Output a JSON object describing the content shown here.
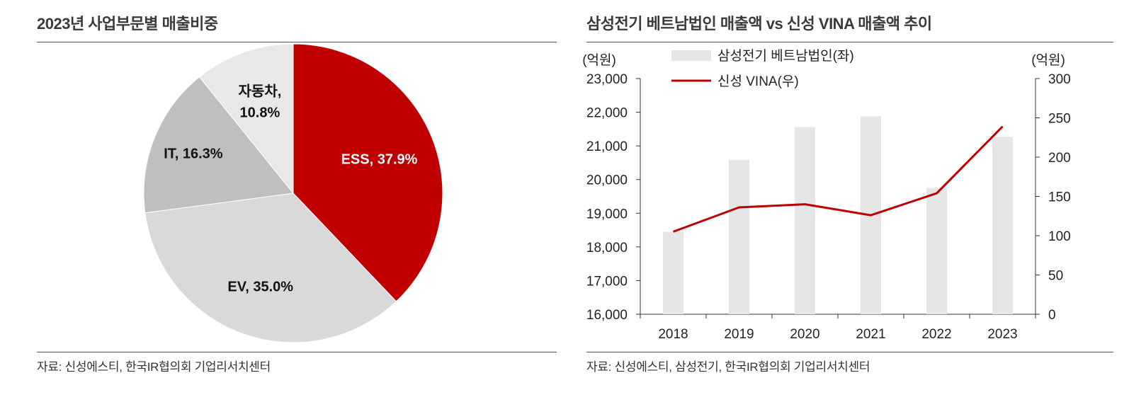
{
  "left": {
    "title": "2023년 사업부문별 매출비중",
    "source": "자료: 신성에스티, 한국IR협의회 기업리서치센터"
  },
  "right": {
    "title": "삼성전기 베트남법인 매출액 vs 신성 VINA 매출액 추이",
    "source": "자료: 신성에스티, 삼성전기, 한국IR협의회 기업리서치센터"
  },
  "chart_data": [
    {
      "type": "pie",
      "title": "2023년 사업부문별 매출비중",
      "start": "12 o'clock, clockwise",
      "slices": [
        {
          "label": "ESS",
          "value": 37.9,
          "text": "ESS, 37.9%",
          "color": "#c00000",
          "label_color": "#ffffff"
        },
        {
          "label": "EV",
          "value": 35.0,
          "text": "EV, 35.0%",
          "color": "#d9d9d9",
          "label_color": "#111111"
        },
        {
          "label": "IT",
          "value": 16.3,
          "text": "IT, 16.3%",
          "color": "#bfbfbf",
          "label_color": "#111111"
        },
        {
          "label": "자동차",
          "value": 10.8,
          "text_lines": [
            "자동차,",
            "10.8%"
          ],
          "color": "#e8e8e8",
          "label_color": "#111111"
        }
      ]
    },
    {
      "type": "bar+line",
      "title": "삼성전기 베트남법인 매출액 vs 신성 VINA 매출액 추이",
      "categories": [
        "2018",
        "2019",
        "2020",
        "2021",
        "2022",
        "2023"
      ],
      "left_unit": "(억원)",
      "right_unit": "(억원)",
      "left_axis": {
        "min": 16000,
        "max": 23000,
        "ticks": [
          16000,
          17000,
          18000,
          19000,
          20000,
          21000,
          22000,
          23000
        ],
        "tick_labels": [
          "16,000",
          "17,000",
          "18,000",
          "19,000",
          "20,000",
          "21,000",
          "22,000",
          "23,000"
        ]
      },
      "right_axis": {
        "min": 0,
        "max": 300,
        "ticks": [
          0,
          50,
          100,
          150,
          200,
          250,
          300
        ],
        "tick_labels": [
          "0",
          "50",
          "100",
          "150",
          "200",
          "250",
          "300"
        ]
      },
      "series": [
        {
          "name": "삼성전기 베트남법인(좌)",
          "type": "bar",
          "axis": "left",
          "color": "#e6e6e6",
          "values": [
            18450,
            20580,
            21560,
            21880,
            19750,
            21270
          ]
        },
        {
          "name": "신성 VINA(우)",
          "type": "line",
          "axis": "right",
          "color": "#c00000",
          "values": [
            105,
            136,
            140,
            126,
            154,
            239
          ]
        }
      ],
      "legend": "top-left"
    }
  ]
}
